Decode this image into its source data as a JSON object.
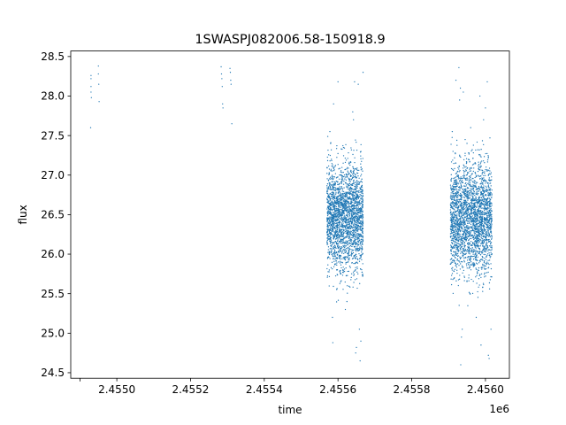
{
  "chart_data": {
    "type": "scatter",
    "title": "1SWASPJ082006.58-150918.9",
    "xlabel": "time",
    "ylabel": "flux",
    "x_offset_label": "1e6",
    "xlim": [
      2454875,
      2456065
    ],
    "ylim": [
      24.43,
      28.57
    ],
    "x_ticks": [
      2454900,
      2455000,
      2455200,
      2455400,
      2455600,
      2455800,
      2456000
    ],
    "x_tick_labels": [
      "",
      "2.4550",
      "2.4552",
      "2.4554",
      "2.4556",
      "2.4558",
      "2.4560"
    ],
    "y_ticks": [
      24.5,
      25.0,
      25.5,
      26.0,
      26.5,
      27.0,
      27.5,
      28.0,
      28.5
    ],
    "y_tick_labels": [
      "24.5",
      "25.0",
      "25.5",
      "26.0",
      "26.5",
      "27.0",
      "27.5",
      "28.0",
      "28.5"
    ],
    "grid": false,
    "legend": "none",
    "marker_color": "#1f77b4",
    "series": [
      {
        "points": [
          [
            2454930,
            28.26
          ],
          [
            2454930,
            28.22
          ],
          [
            2454930,
            28.12
          ],
          [
            2454930,
            28.05
          ],
          [
            2454931,
            27.98
          ],
          [
            2454929,
            27.6
          ],
          [
            2454950,
            28.38
          ],
          [
            2454950,
            28.28
          ],
          [
            2454951,
            28.15
          ],
          [
            2454952,
            27.93
          ],
          [
            2455283,
            28.37
          ],
          [
            2455284,
            28.28
          ],
          [
            2455285,
            28.22
          ],
          [
            2455286,
            28.12
          ],
          [
            2455287,
            27.9
          ],
          [
            2455288,
            27.85
          ],
          [
            2455307,
            28.35
          ],
          [
            2455308,
            28.3
          ],
          [
            2455309,
            28.2
          ],
          [
            2455310,
            28.15
          ],
          [
            2455312,
            27.65
          ],
          [
            2455578,
            27.55
          ],
          [
            2455580,
            27.4
          ],
          [
            2455582,
            27.2
          ],
          [
            2455585,
            25.2
          ],
          [
            2455586,
            24.88
          ],
          [
            2455588,
            27.9
          ],
          [
            2455600,
            28.18
          ],
          [
            2455615,
            27.35
          ],
          [
            2455620,
            25.3
          ],
          [
            2455625,
            25.6
          ],
          [
            2455640,
            27.8
          ],
          [
            2455642,
            27.7
          ],
          [
            2455645,
            28.18
          ],
          [
            2455648,
            24.75
          ],
          [
            2455650,
            24.82
          ],
          [
            2455655,
            28.15
          ],
          [
            2455658,
            25.05
          ],
          [
            2455660,
            24.65
          ],
          [
            2455662,
            24.9
          ],
          [
            2455668,
            28.3
          ],
          [
            2455910,
            27.55
          ],
          [
            2455912,
            27.3
          ],
          [
            2455920,
            28.2
          ],
          [
            2455928,
            28.36
          ],
          [
            2455930,
            27.95
          ],
          [
            2455932,
            28.1
          ],
          [
            2455933,
            24.6
          ],
          [
            2455935,
            24.95
          ],
          [
            2455937,
            25.05
          ],
          [
            2455940,
            28.05
          ],
          [
            2455945,
            27.45
          ],
          [
            2455960,
            27.6
          ],
          [
            2455975,
            25.2
          ],
          [
            2455985,
            28.0
          ],
          [
            2455988,
            24.85
          ],
          [
            2455995,
            27.7
          ],
          [
            2456000,
            27.85
          ],
          [
            2456005,
            28.18
          ],
          [
            2456008,
            24.72
          ],
          [
            2456010,
            24.68
          ],
          [
            2456015,
            25.05
          ]
        ]
      }
    ],
    "dense_clusters": [
      {
        "x_start": 2455570,
        "x_end": 2455668,
        "y_mean": 26.48,
        "y_sd": 0.33,
        "count": 2400
      },
      {
        "x_start": 2455905,
        "x_end": 2456018,
        "y_mean": 26.45,
        "y_sd": 0.34,
        "count": 2600
      }
    ]
  }
}
